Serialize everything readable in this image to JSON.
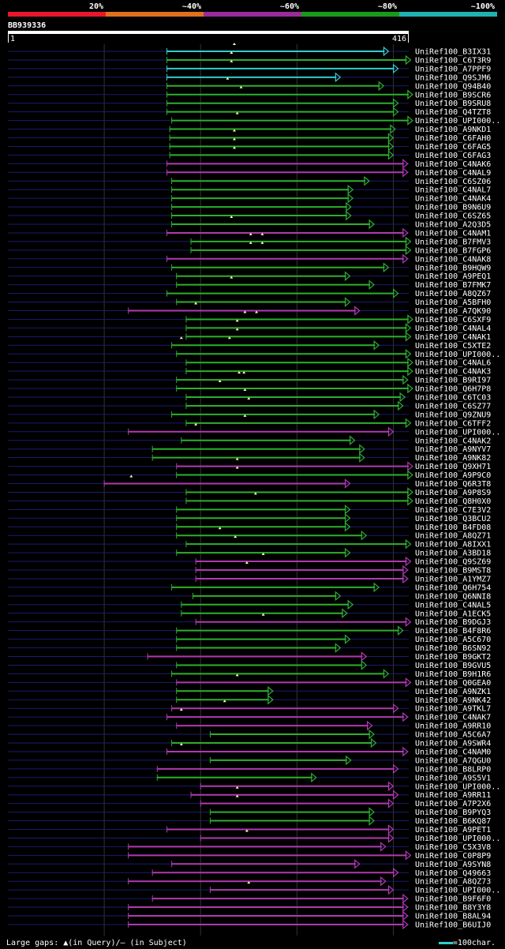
{
  "chart_data": {
    "type": "alignment-overview",
    "query_id": "BB939336",
    "query_start": "1",
    "query_end": "416",
    "query_length": 416,
    "identity_bands": [
      {
        "label": "20%",
        "color": "#e8172b"
      },
      {
        "label": "~40%",
        "color": "#e0701d"
      },
      {
        "label": "~60%",
        "color": "#992c99"
      },
      {
        "label": "~80%",
        "color": "#1a9a1a"
      },
      {
        "label": "~100%",
        "color": "#20b2b2"
      }
    ],
    "colors": {
      "cyan": "#33cccc",
      "green": "#2daf2d",
      "magenta": "#b03ab0",
      "baseline": "#1b1b70"
    },
    "hits": [
      {
        "name": "UniRef100_B3IX31",
        "start": 165,
        "end": 395,
        "color": "cyan",
        "gaps": [
          235
        ]
      },
      {
        "name": "UniRef100_C6T3R9",
        "start": 165,
        "end": 418,
        "color": "green",
        "gaps": [
          232
        ]
      },
      {
        "name": "UniRef100_A7PPF9",
        "start": 165,
        "end": 405,
        "color": "cyan",
        "gaps": [
          232
        ]
      },
      {
        "name": "UniRef100_Q9SJM6",
        "start": 165,
        "end": 345,
        "color": "cyan",
        "gaps": []
      },
      {
        "name": "UniRef100_Q94B40",
        "start": 165,
        "end": 390,
        "color": "green",
        "gaps": [
          228
        ]
      },
      {
        "name": "UniRef100_B9SCR6",
        "start": 165,
        "end": 420,
        "color": "green",
        "gaps": [
          242
        ]
      },
      {
        "name": "UniRef100_B9SRU8",
        "start": 165,
        "end": 405,
        "color": "green",
        "gaps": []
      },
      {
        "name": "UniRef100_Q4TZT8",
        "start": 165,
        "end": 405,
        "color": "green",
        "gaps": []
      },
      {
        "name": "UniRef100_UPI000..",
        "start": 170,
        "end": 420,
        "color": "green",
        "gaps": [
          238
        ]
      },
      {
        "name": "UniRef100_A9NKD1",
        "start": 168,
        "end": 402,
        "color": "green",
        "gaps": []
      },
      {
        "name": "UniRef100_C6FAH0",
        "start": 168,
        "end": 400,
        "color": "green",
        "gaps": [
          235
        ]
      },
      {
        "name": "UniRef100_C6FAG5",
        "start": 168,
        "end": 400,
        "color": "green",
        "gaps": [
          235
        ]
      },
      {
        "name": "UniRef100_C6FAG3",
        "start": 168,
        "end": 400,
        "color": "green",
        "gaps": [
          235
        ]
      },
      {
        "name": "UniRef100_C4NAK6",
        "start": 165,
        "end": 415,
        "color": "magenta",
        "gaps": []
      },
      {
        "name": "UniRef100_C4NAL9",
        "start": 165,
        "end": 415,
        "color": "magenta",
        "gaps": []
      },
      {
        "name": "UniRef100_C6SZ06",
        "start": 170,
        "end": 375,
        "color": "green",
        "gaps": []
      },
      {
        "name": "UniRef100_C4NAL7",
        "start": 170,
        "end": 358,
        "color": "green",
        "gaps": []
      },
      {
        "name": "UniRef100_C4NAK4",
        "start": 170,
        "end": 358,
        "color": "green",
        "gaps": []
      },
      {
        "name": "UniRef100_B9N6U9",
        "start": 170,
        "end": 356,
        "color": "green",
        "gaps": []
      },
      {
        "name": "UniRef100_C6SZ65",
        "start": 170,
        "end": 356,
        "color": "green",
        "gaps": []
      },
      {
        "name": "UniRef100_A2Q3D5",
        "start": 170,
        "end": 380,
        "color": "green",
        "gaps": [
          232
        ]
      },
      {
        "name": "UniRef100_C4NAM1",
        "start": 165,
        "end": 415,
        "color": "magenta",
        "gaps": []
      },
      {
        "name": "UniRef100_B7FMV3",
        "start": 190,
        "end": 418,
        "color": "green",
        "gaps": [
          252,
          264
        ]
      },
      {
        "name": "UniRef100_B7FGP6",
        "start": 190,
        "end": 418,
        "color": "green",
        "gaps": [
          252,
          264
        ]
      },
      {
        "name": "UniRef100_C4NAK8",
        "start": 165,
        "end": 415,
        "color": "magenta",
        "gaps": []
      },
      {
        "name": "UniRef100_B9HQW9",
        "start": 170,
        "end": 395,
        "color": "green",
        "gaps": []
      },
      {
        "name": "UniRef100_A9PEQ1",
        "start": 175,
        "end": 355,
        "color": "green",
        "gaps": []
      },
      {
        "name": "UniRef100_B7FMK7",
        "start": 175,
        "end": 380,
        "color": "green",
        "gaps": [
          232
        ]
      },
      {
        "name": "UniRef100_A8QZ67",
        "start": 165,
        "end": 405,
        "color": "green",
        "gaps": []
      },
      {
        "name": "UniRef100_A5BFH0",
        "start": 175,
        "end": 355,
        "color": "green",
        "gaps": []
      },
      {
        "name": "UniRef100_A7QK90",
        "start": 125,
        "end": 365,
        "color": "magenta",
        "gaps": [
          195
        ]
      },
      {
        "name": "UniRef100_C6SXF9",
        "start": 185,
        "end": 420,
        "color": "green",
        "gaps": [
          246,
          258
        ]
      },
      {
        "name": "UniRef100_C4NAL4",
        "start": 185,
        "end": 418,
        "color": "green",
        "gaps": [
          238
        ]
      },
      {
        "name": "UniRef100_C4NAK1",
        "start": 185,
        "end": 418,
        "color": "green",
        "gaps": [
          238
        ]
      },
      {
        "name": "UniRef100_C5XTE2",
        "start": 170,
        "end": 385,
        "color": "green",
        "gaps": [
          180,
          230
        ]
      },
      {
        "name": "UniRef100_UPI000..",
        "start": 175,
        "end": 418,
        "color": "green",
        "gaps": []
      },
      {
        "name": "UniRef100_C4NAL6",
        "start": 185,
        "end": 420,
        "color": "green",
        "gaps": []
      },
      {
        "name": "UniRef100_C4NAK3",
        "start": 185,
        "end": 420,
        "color": "green",
        "gaps": []
      },
      {
        "name": "UniRef100_B9RI97",
        "start": 175,
        "end": 415,
        "color": "green",
        "gaps": [
          240,
          245
        ]
      },
      {
        "name": "UniRef100_Q6H7P8",
        "start": 175,
        "end": 420,
        "color": "green",
        "gaps": [
          220
        ]
      },
      {
        "name": "UniRef100_C6TC03",
        "start": 185,
        "end": 412,
        "color": "green",
        "gaps": [
          246
        ]
      },
      {
        "name": "UniRef100_C6SZ77",
        "start": 185,
        "end": 410,
        "color": "green",
        "gaps": [
          250
        ]
      },
      {
        "name": "UniRef100_Q9ZNU9",
        "start": 170,
        "end": 385,
        "color": "green",
        "gaps": []
      },
      {
        "name": "UniRef100_C6TFF2",
        "start": 185,
        "end": 418,
        "color": "green",
        "gaps": [
          246
        ]
      },
      {
        "name": "UniRef100_UPI000..",
        "start": 125,
        "end": 400,
        "color": "magenta",
        "gaps": [
          195
        ]
      },
      {
        "name": "UniRef100_C4NAK2",
        "start": 180,
        "end": 360,
        "color": "green",
        "gaps": []
      },
      {
        "name": "UniRef100_A9NYV7",
        "start": 150,
        "end": 370,
        "color": "green",
        "gaps": []
      },
      {
        "name": "UniRef100_A9NK82",
        "start": 150,
        "end": 370,
        "color": "green",
        "gaps": []
      },
      {
        "name": "UniRef100_Q9XH71",
        "start": 175,
        "end": 420,
        "color": "magenta",
        "gaps": [
          238
        ]
      },
      {
        "name": "UniRef100_A9P9C0",
        "start": 175,
        "end": 420,
        "color": "green",
        "gaps": [
          238
        ]
      },
      {
        "name": "UniRef100_Q6R3T8",
        "start": 100,
        "end": 355,
        "color": "magenta",
        "gaps": [
          128
        ]
      },
      {
        "name": "UniRef100_A9P8S9",
        "start": 185,
        "end": 420,
        "color": "green",
        "gaps": []
      },
      {
        "name": "UniRef100_Q8H0X0",
        "start": 185,
        "end": 420,
        "color": "green",
        "gaps": [
          257
        ]
      },
      {
        "name": "UniRef100_C7E3V2",
        "start": 175,
        "end": 355,
        "color": "green",
        "gaps": []
      },
      {
        "name": "UniRef100_Q3BCU2",
        "start": 175,
        "end": 355,
        "color": "green",
        "gaps": []
      },
      {
        "name": "UniRef100_B4FD08",
        "start": 175,
        "end": 355,
        "color": "green",
        "gaps": []
      },
      {
        "name": "UniRef100_A8QZ71",
        "start": 175,
        "end": 372,
        "color": "green",
        "gaps": [
          220
        ]
      },
      {
        "name": "UniRef100_A8IXX1",
        "start": 185,
        "end": 418,
        "color": "green",
        "gaps": [
          236
        ]
      },
      {
        "name": "UniRef100_A3BD18",
        "start": 175,
        "end": 355,
        "color": "green",
        "gaps": []
      },
      {
        "name": "UniRef100_Q9SZ69",
        "start": 195,
        "end": 418,
        "color": "magenta",
        "gaps": [
          265
        ]
      },
      {
        "name": "UniRef100_B9MST8",
        "start": 195,
        "end": 415,
        "color": "magenta",
        "gaps": [
          248
        ]
      },
      {
        "name": "UniRef100_A1YMZ7",
        "start": 195,
        "end": 415,
        "color": "magenta",
        "gaps": []
      },
      {
        "name": "UniRef100_Q6H754",
        "start": 170,
        "end": 385,
        "color": "green",
        "gaps": []
      },
      {
        "name": "UniRef100_Q6NNI8",
        "start": 192,
        "end": 345,
        "color": "green",
        "gaps": []
      },
      {
        "name": "UniRef100_C4NAL5",
        "start": 180,
        "end": 358,
        "color": "green",
        "gaps": []
      },
      {
        "name": "UniRef100_A1ECK5",
        "start": 180,
        "end": 352,
        "color": "green",
        "gaps": []
      },
      {
        "name": "UniRef100_B9DGJ3",
        "start": 195,
        "end": 418,
        "color": "magenta",
        "gaps": [
          265
        ]
      },
      {
        "name": "UniRef100_B4F8R6",
        "start": 175,
        "end": 410,
        "color": "green",
        "gaps": []
      },
      {
        "name": "UniRef100_A5C670",
        "start": 175,
        "end": 355,
        "color": "green",
        "gaps": []
      },
      {
        "name": "UniRef100_B6SN92",
        "start": 175,
        "end": 345,
        "color": "green",
        "gaps": []
      },
      {
        "name": "UniRef100_B9GKT2",
        "start": 145,
        "end": 372,
        "color": "magenta",
        "gaps": []
      },
      {
        "name": "UniRef100_B9GVU5",
        "start": 175,
        "end": 372,
        "color": "green",
        "gaps": []
      },
      {
        "name": "UniRef100_B9H1R6",
        "start": 170,
        "end": 395,
        "color": "green",
        "gaps": []
      },
      {
        "name": "UniRef100_Q0GEA0",
        "start": 175,
        "end": 418,
        "color": "magenta",
        "gaps": [
          238
        ]
      },
      {
        "name": "UniRef100_A9NZK1",
        "start": 175,
        "end": 275,
        "color": "green",
        "gaps": []
      },
      {
        "name": "UniRef100_A9NK42",
        "start": 175,
        "end": 275,
        "color": "green",
        "gaps": []
      },
      {
        "name": "UniRef100_A9TKL7",
        "start": 170,
        "end": 405,
        "color": "magenta",
        "gaps": [
          225
        ]
      },
      {
        "name": "UniRef100_C4NAK7",
        "start": 165,
        "end": 415,
        "color": "magenta",
        "gaps": [
          180
        ]
      },
      {
        "name": "UniRef100_A9RR10",
        "start": 175,
        "end": 378,
        "color": "magenta",
        "gaps": []
      },
      {
        "name": "UniRef100_A5C6A7",
        "start": 210,
        "end": 380,
        "color": "green",
        "gaps": []
      },
      {
        "name": "UniRef100_A9SWR4",
        "start": 170,
        "end": 382,
        "color": "green",
        "gaps": []
      },
      {
        "name": "UniRef100_C4NAM0",
        "start": 165,
        "end": 415,
        "color": "magenta",
        "gaps": [
          180
        ]
      },
      {
        "name": "UniRef100_A7QGU0",
        "start": 210,
        "end": 356,
        "color": "green",
        "gaps": []
      },
      {
        "name": "UniRef100_B8LRP0",
        "start": 155,
        "end": 405,
        "color": "magenta",
        "gaps": []
      },
      {
        "name": "UniRef100_A9S5V1",
        "start": 155,
        "end": 320,
        "color": "green",
        "gaps": []
      },
      {
        "name": "UniRef100_UPI000..",
        "start": 200,
        "end": 400,
        "color": "magenta",
        "gaps": []
      },
      {
        "name": "UniRef100_A9RR11",
        "start": 190,
        "end": 405,
        "color": "magenta",
        "gaps": [
          238
        ]
      },
      {
        "name": "UniRef100_A7P2X6",
        "start": 200,
        "end": 400,
        "color": "magenta",
        "gaps": [
          238
        ]
      },
      {
        "name": "UniRef100_B9PYQ3",
        "start": 210,
        "end": 380,
        "color": "green",
        "gaps": []
      },
      {
        "name": "UniRef100_B6KQ87",
        "start": 210,
        "end": 380,
        "color": "green",
        "gaps": []
      },
      {
        "name": "UniRef100_A9PET1",
        "start": 165,
        "end": 400,
        "color": "magenta",
        "gaps": []
      },
      {
        "name": "UniRef100_UPI000..",
        "start": 200,
        "end": 400,
        "color": "magenta",
        "gaps": [
          248
        ]
      },
      {
        "name": "UniRef100_C5X3V8",
        "start": 125,
        "end": 392,
        "color": "magenta",
        "gaps": []
      },
      {
        "name": "UniRef100_C0P8P9",
        "start": 125,
        "end": 418,
        "color": "magenta",
        "gaps": []
      },
      {
        "name": "UniRef100_A9SYN8",
        "start": 170,
        "end": 365,
        "color": "magenta",
        "gaps": []
      },
      {
        "name": "UniRef100_Q49663",
        "start": 150,
        "end": 405,
        "color": "magenta",
        "gaps": []
      },
      {
        "name": "UniRef100_A8QZ73",
        "start": 125,
        "end": 392,
        "color": "magenta",
        "gaps": []
      },
      {
        "name": "UniRef100_UPI000..",
        "start": 210,
        "end": 400,
        "color": "magenta",
        "gaps": [
          250
        ]
      },
      {
        "name": "UniRef100_B9F6F0",
        "start": 150,
        "end": 415,
        "color": "magenta",
        "gaps": []
      },
      {
        "name": "UniRef100_B8Y3Y8",
        "start": 125,
        "end": 415,
        "color": "magenta",
        "gaps": []
      },
      {
        "name": "UniRef100_B8AL94",
        "start": 125,
        "end": 415,
        "color": "magenta",
        "gaps": []
      },
      {
        "name": "UniRef100_B6UIJ0",
        "start": 125,
        "end": 415,
        "color": "magenta",
        "gaps": []
      }
    ],
    "footer_text": "Large gaps: ▲(in Query)/— (in Subject)",
    "legend_text": "=100char."
  }
}
